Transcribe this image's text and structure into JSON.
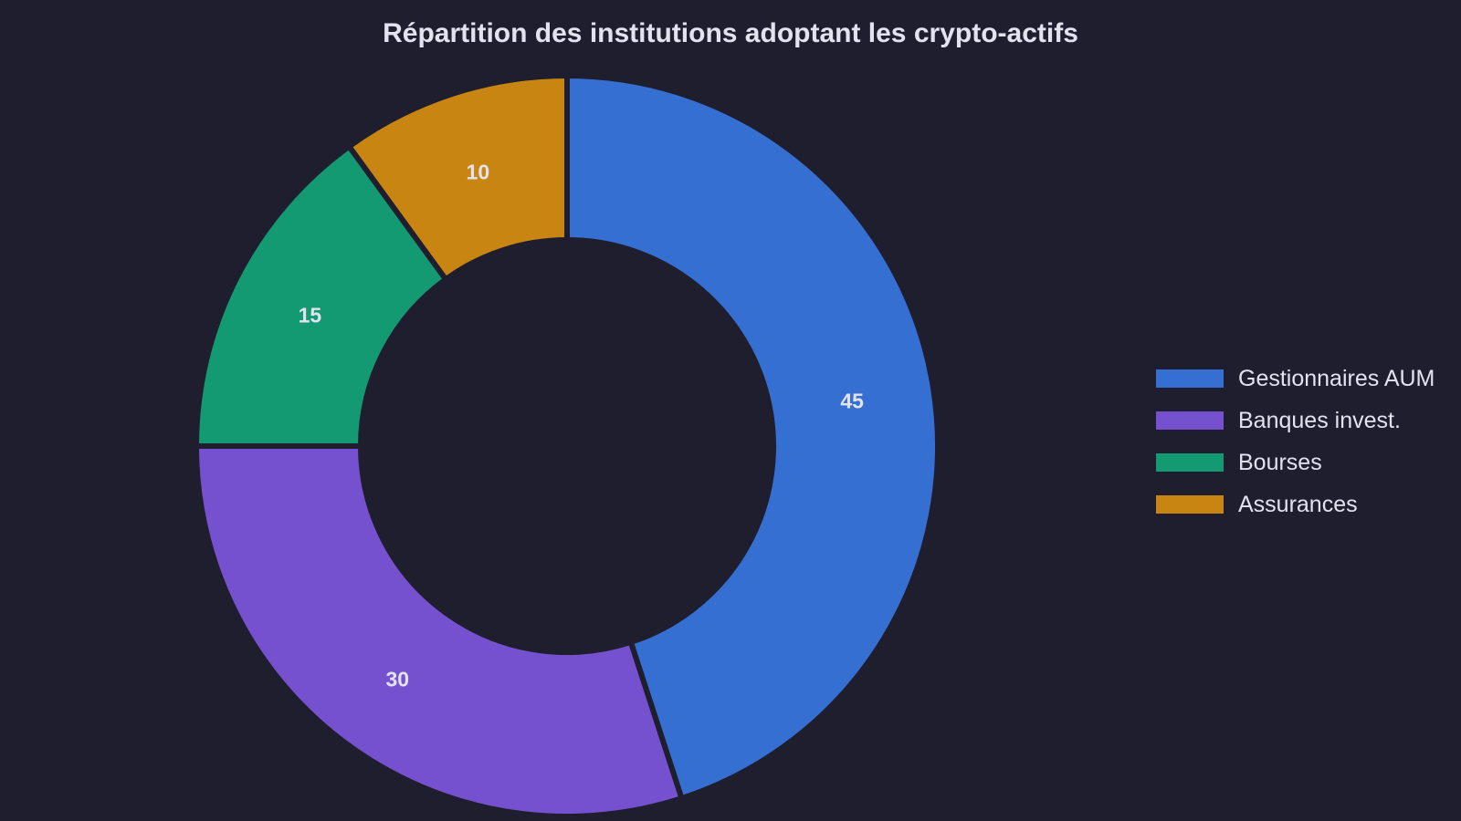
{
  "chart_data": {
    "type": "pie",
    "subtype": "donut",
    "title": "Répartition des institutions adoptant les crypto-actifs",
    "categories": [
      "Gestionnaires AUM",
      "Banques invest.",
      "Bourses",
      "Assurances"
    ],
    "values": [
      45,
      30,
      15,
      10
    ],
    "data_labels": [
      "45",
      "30",
      "15",
      "10"
    ],
    "colors": [
      "#366fd2",
      "#7651cf",
      "#139a72",
      "#c88512"
    ],
    "start_angle": "12 o'clock",
    "direction": "clockwise",
    "legend": {
      "position": "right",
      "entries": [
        "Gestionnaires AUM",
        "Banques invest.",
        "Bourses",
        "Assurances"
      ]
    }
  }
}
